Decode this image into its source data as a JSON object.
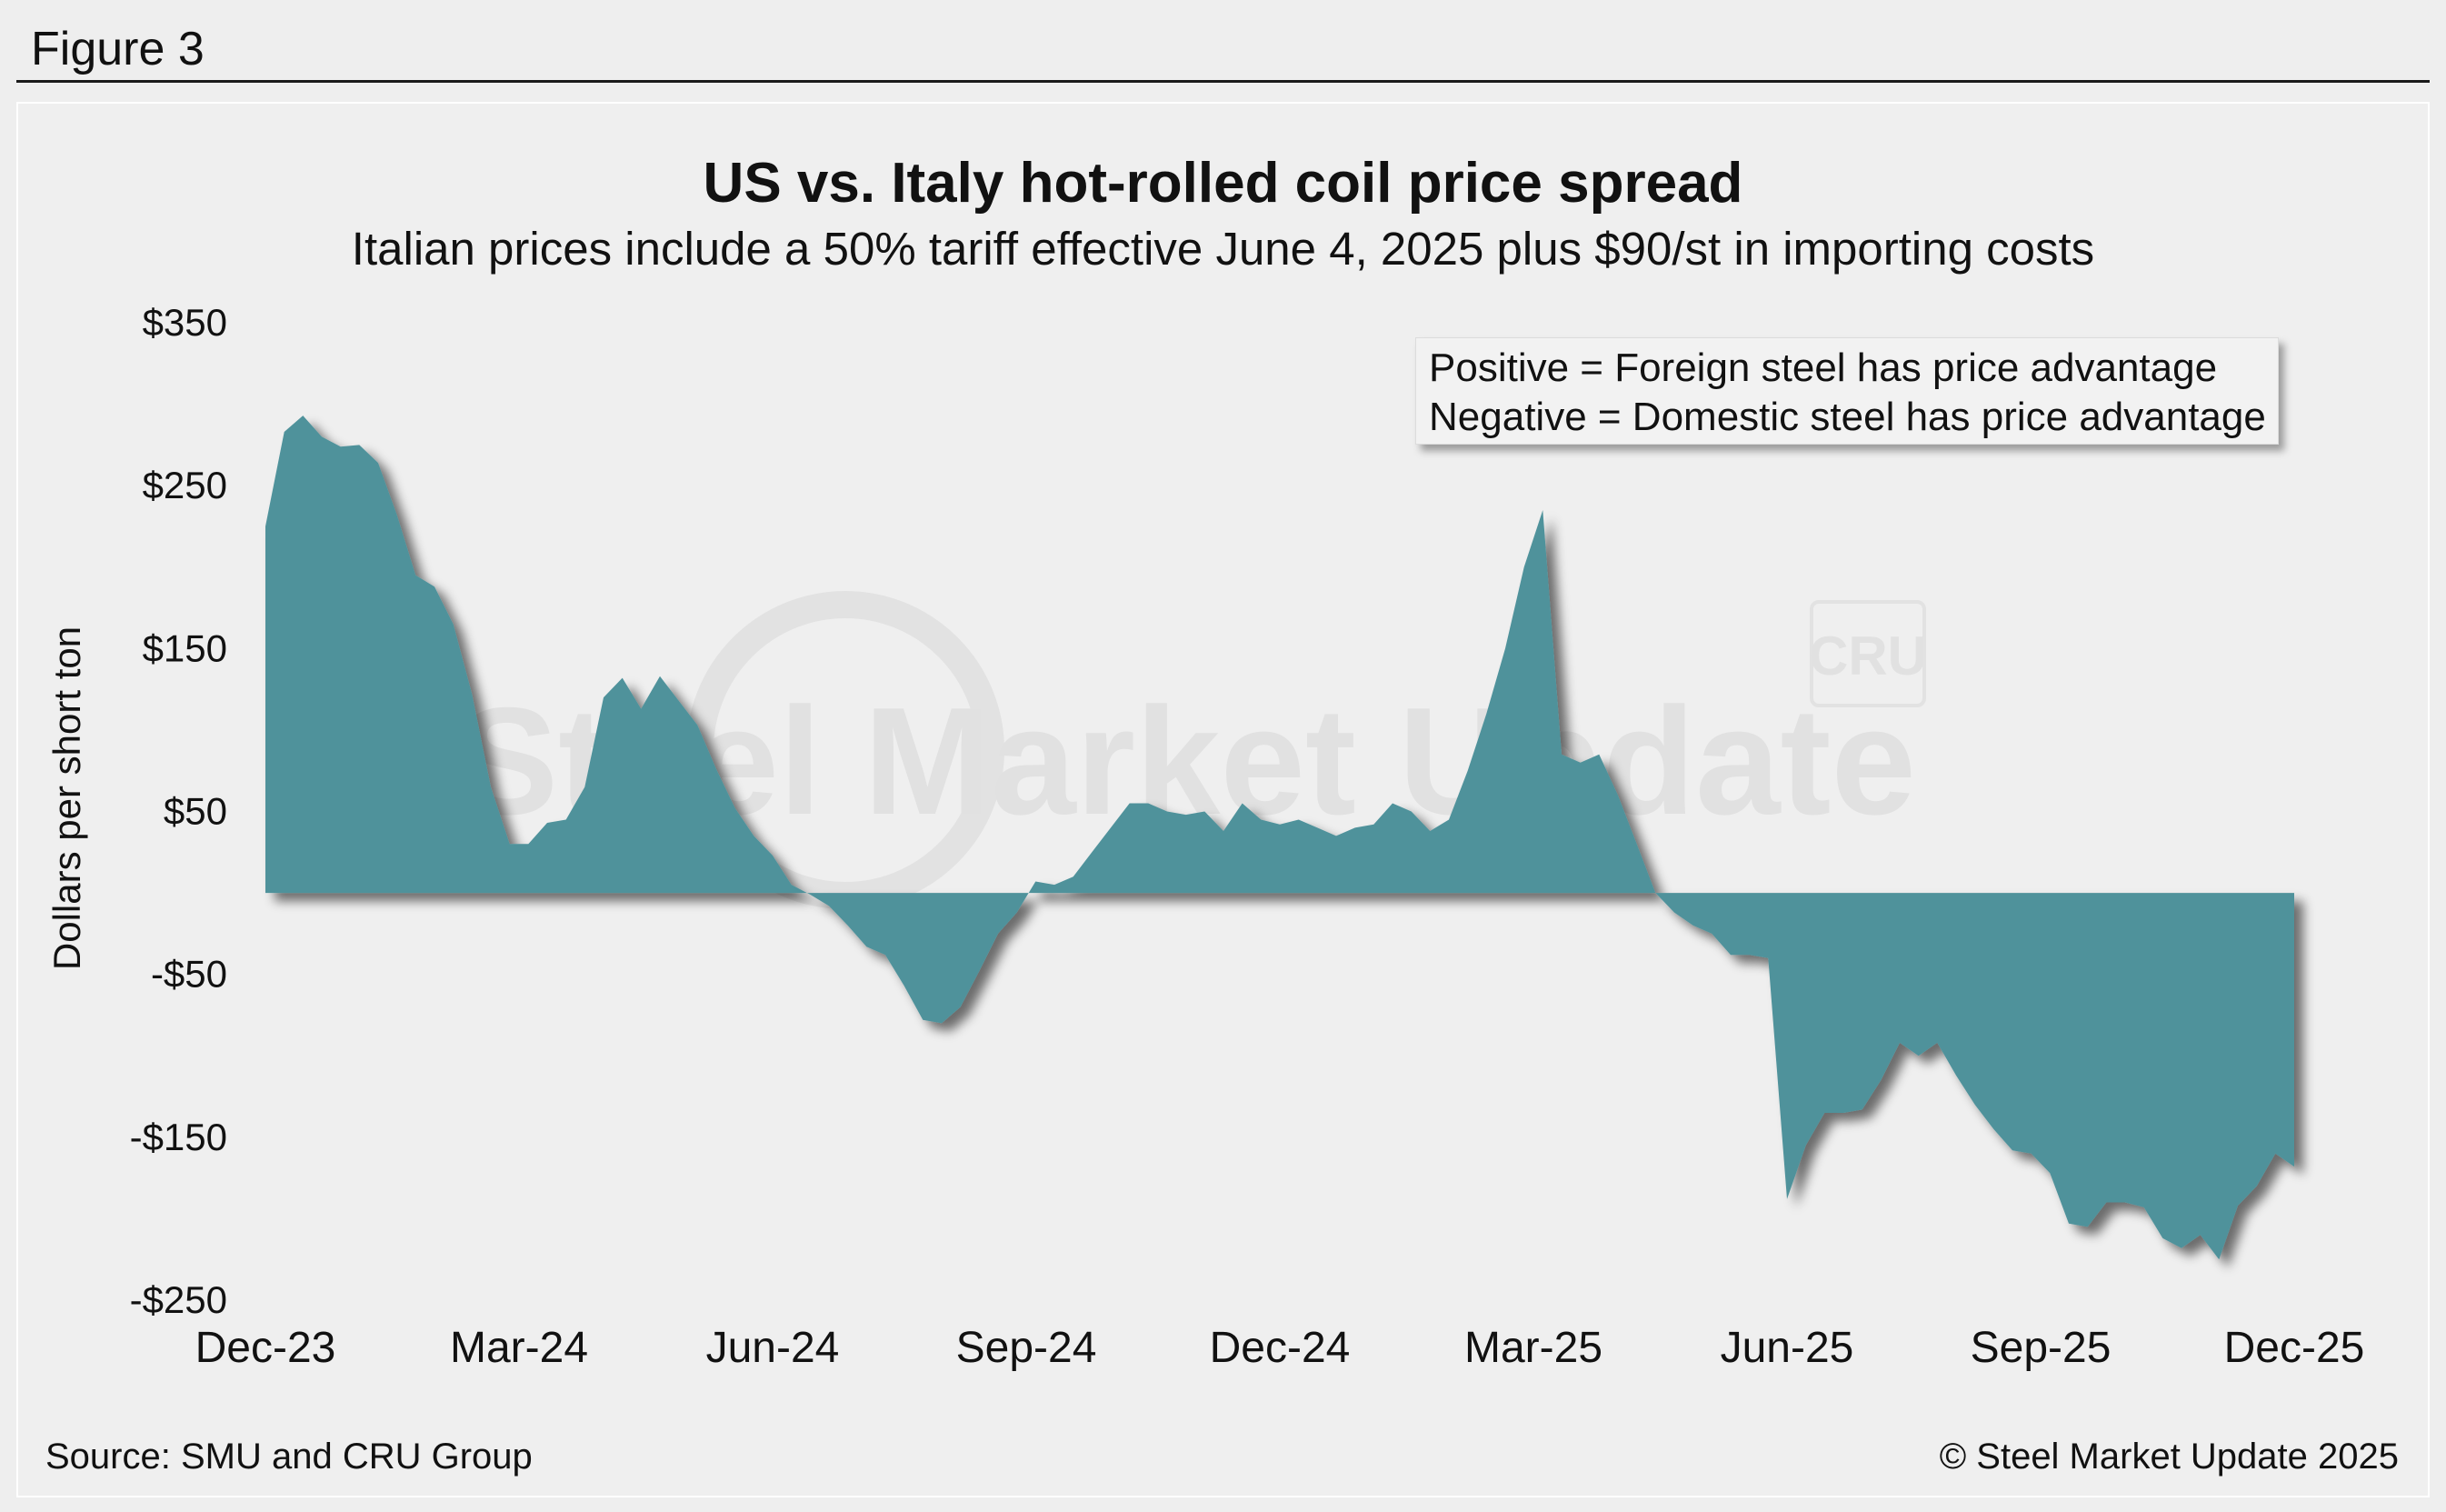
{
  "figure_label": "Figure 3",
  "source_text": "Source: SMU and CRU Group",
  "copyright_text": "© Steel Market Update 2025",
  "watermark": {
    "brand": "Steel Market Update",
    "logo": "CRU"
  },
  "legend_note": {
    "line1": "Positive = Foreign steel has price advantage",
    "line2": "Negative = Domestic steel has price advantage"
  },
  "colors": {
    "area": "#4f929b",
    "shadow": "#2a2a2a",
    "background": "#eeeeee"
  },
  "chart_data": {
    "type": "area",
    "title": "US vs. Italy hot-rolled coil price spread",
    "subtitle": "Italian prices include a 50% tariff effective June 4, 2025 plus $90/st in importing costs",
    "ylabel": "Dollars per short ton",
    "xlabel": "",
    "ylim": [
      -250,
      350
    ],
    "yticks": [
      350,
      250,
      150,
      50,
      -50,
      -150,
      -250
    ],
    "ytick_labels": [
      "$350",
      "$250",
      "$150",
      "$50",
      "-$50",
      "-$150",
      "-$250"
    ],
    "xticks": [
      "Dec-23",
      "Mar-24",
      "Jun-24",
      "Sep-24",
      "Dec-24",
      "Mar-25",
      "Jun-25",
      "Sep-25",
      "Dec-25"
    ],
    "grid": false,
    "series": [
      {
        "values": [
          225,
          283,
          293,
          280,
          274,
          275,
          264,
          232,
          195,
          188,
          165,
          122,
          65,
          30,
          30,
          43,
          45,
          65,
          120,
          132,
          113,
          133,
          118,
          103,
          76,
          52,
          35,
          23,
          5,
          -1,
          -8,
          -20,
          -33,
          -38,
          -57,
          -78,
          -80,
          -70,
          -48,
          -25,
          -12,
          7,
          5,
          10,
          25,
          40,
          55,
          55,
          50,
          48,
          50,
          38,
          55,
          45,
          42,
          45,
          40,
          35,
          40,
          42,
          55,
          50,
          38,
          45,
          75,
          110,
          150,
          200,
          235,
          85,
          80,
          85,
          60,
          30,
          0,
          -12,
          -20,
          -25,
          -38,
          -38,
          -40,
          -188,
          -155,
          -135,
          -135,
          -133,
          -115,
          -92,
          -100,
          -92,
          -112,
          -130,
          -145,
          -158,
          -160,
          -172,
          -203,
          -205,
          -190,
          -190,
          -193,
          -212,
          -218,
          -210,
          -225,
          -192,
          -180,
          -160,
          -168
        ]
      }
    ]
  }
}
